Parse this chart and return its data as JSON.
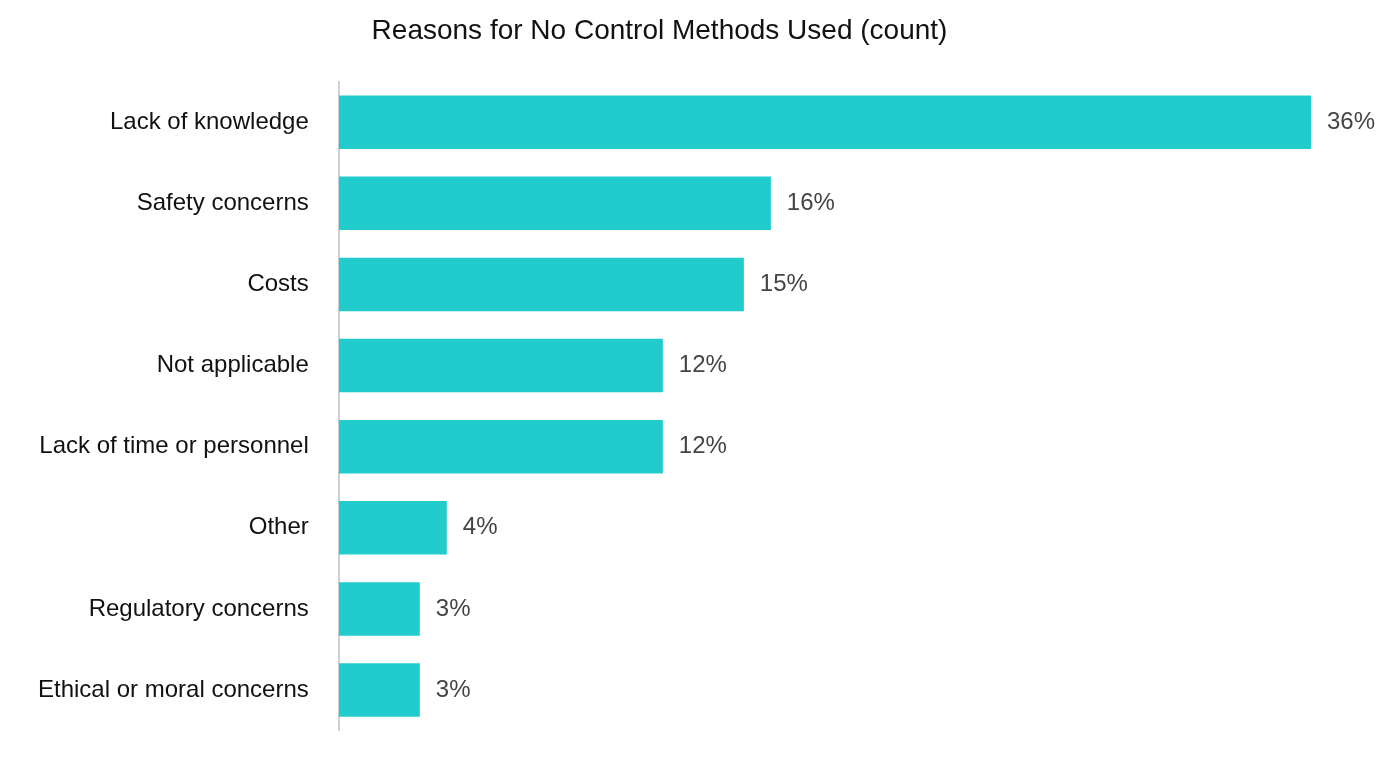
{
  "chart_data": {
    "type": "bar",
    "orientation": "horizontal",
    "title": "Reasons for No Control Methods Used (count)",
    "categories": [
      "Lack of knowledge",
      "Safety concerns",
      "Costs",
      "Not applicable",
      "Lack of time or personnel",
      "Other",
      "Regulatory concerns",
      "Ethical or moral concerns"
    ],
    "values": [
      36,
      16,
      15,
      12,
      12,
      4,
      3,
      3
    ],
    "value_labels": [
      "36%",
      "16%",
      "15%",
      "12%",
      "12%",
      "4%",
      "3%",
      "3%"
    ],
    "color": "#22cccc",
    "tick_labels": "y",
    "grid": false,
    "legend": false
  }
}
